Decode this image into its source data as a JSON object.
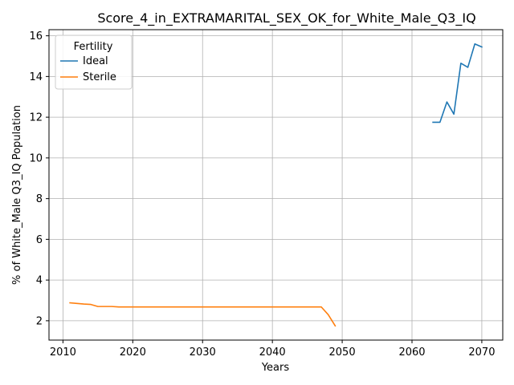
{
  "chart_data": {
    "type": "line",
    "title": "Score_4_in_EXTRAMARITAL_SEX_OK_for_White_Male_Q3_IQ",
    "xlabel": "Years",
    "ylabel": "% of White_Male Q3_IQ Population",
    "xlim": [
      2008,
      2073
    ],
    "ylim": [
      1.05,
      16.3
    ],
    "xticks": [
      2010,
      2020,
      2030,
      2040,
      2050,
      2060,
      2070
    ],
    "yticks": [
      2,
      4,
      6,
      8,
      10,
      12,
      14,
      16
    ],
    "grid": true,
    "legend": {
      "title": "Fertility",
      "placement": "top-left"
    },
    "series": [
      {
        "name": "Ideal",
        "color": "#1f77b4",
        "x": [
          2063,
          2064,
          2065,
          2066,
          2067,
          2068,
          2069,
          2070
        ],
        "y": [
          11.75,
          11.75,
          12.75,
          12.15,
          14.65,
          14.45,
          15.6,
          15.45
        ]
      },
      {
        "name": "Sterile",
        "color": "#ff7f0e",
        "x": [
          2011,
          2012,
          2013,
          2014,
          2015,
          2016,
          2017,
          2018,
          2019,
          2020,
          2021,
          2022,
          2023,
          2024,
          2025,
          2026,
          2027,
          2028,
          2029,
          2030,
          2031,
          2032,
          2033,
          2034,
          2035,
          2036,
          2037,
          2038,
          2039,
          2040,
          2041,
          2042,
          2043,
          2044,
          2045,
          2046,
          2047,
          2048,
          2049
        ],
        "y": [
          2.88,
          2.85,
          2.82,
          2.8,
          2.7,
          2.7,
          2.7,
          2.68,
          2.68,
          2.68,
          2.68,
          2.68,
          2.68,
          2.68,
          2.68,
          2.68,
          2.68,
          2.68,
          2.68,
          2.68,
          2.68,
          2.68,
          2.68,
          2.68,
          2.68,
          2.68,
          2.68,
          2.68,
          2.68,
          2.68,
          2.68,
          2.68,
          2.68,
          2.68,
          2.68,
          2.68,
          2.68,
          2.3,
          1.75
        ]
      }
    ]
  }
}
